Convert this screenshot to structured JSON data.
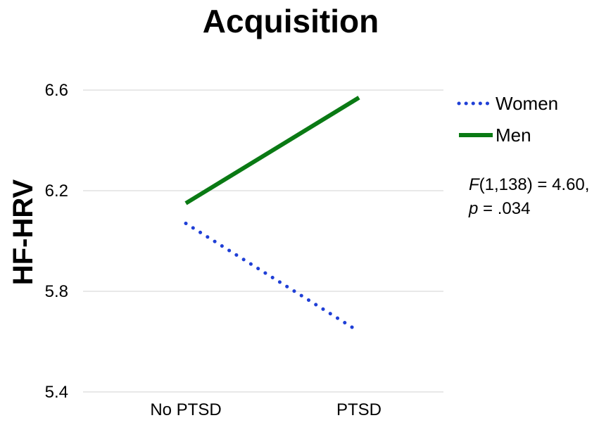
{
  "chart_data": {
    "type": "line",
    "title": "Acquisition",
    "xlabel": "",
    "ylabel": "HF-HRV",
    "categories": [
      "No PTSD",
      "PTSD"
    ],
    "ylim": [
      5.4,
      6.6
    ],
    "yticks": [
      "5.4",
      "5.8",
      "6.2",
      "6.6"
    ],
    "grid": true,
    "legend_position": "right",
    "series": [
      {
        "name": "Women",
        "values": [
          6.07,
          5.64
        ],
        "color": "#1f3fd6",
        "style": "dotted"
      },
      {
        "name": "Men",
        "values": [
          6.15,
          6.57
        ],
        "color": "#0a7a14",
        "style": "solid"
      }
    ],
    "annotation": {
      "stat_symbol": "F",
      "stat_rest": "(1,138) = 4.60,",
      "p_symbol": "p",
      "p_rest": " = .034"
    }
  }
}
